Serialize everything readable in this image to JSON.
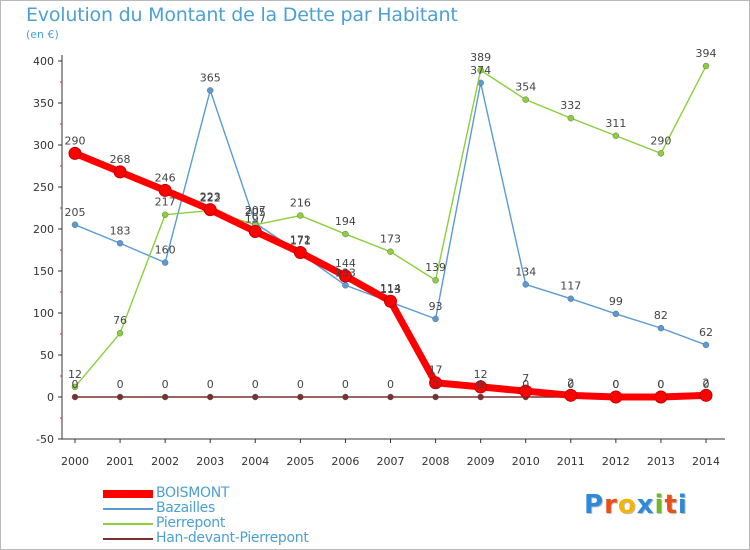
{
  "chart_data": {
    "type": "line",
    "title": "Evolution du Montant de la Dette par Habitant",
    "unit": "(en €)",
    "x": [
      "2000",
      "2001",
      "2002",
      "2003",
      "2004",
      "2005",
      "2006",
      "2007",
      "2008",
      "2009",
      "2010",
      "2011",
      "2012",
      "2013",
      "2014"
    ],
    "ylim": [
      -50,
      400
    ],
    "yticks": [
      "-50",
      "0",
      "50",
      "100",
      "150",
      "200",
      "250",
      "300",
      "350",
      "400"
    ],
    "ytick_values": [
      -50,
      0,
      50,
      100,
      150,
      200,
      250,
      300,
      350,
      400
    ],
    "grid": false,
    "legend_position": "bottom-left",
    "series": [
      {
        "name": "BOISMONT",
        "color": "#ff0000",
        "values": [
          290,
          268,
          246,
          223,
          197,
          172,
          144,
          114,
          17,
          12,
          7,
          2,
          0,
          0,
          2
        ],
        "labels": [
          "290",
          "268",
          "246",
          "223",
          "197",
          "172",
          "144",
          "114",
          "17",
          "12",
          "7",
          "2",
          "0",
          "0",
          "2"
        ]
      },
      {
        "name": "Bazailles",
        "color": "#5b9bd5",
        "values": [
          205,
          183,
          160,
          365,
          207,
          171,
          133,
          113,
          93,
          374,
          134,
          117,
          99,
          82,
          62
        ],
        "labels": [
          "205",
          "183",
          "160",
          "365",
          "207",
          "171",
          "133",
          "113",
          "93",
          "374",
          "134",
          "117",
          "99",
          "82",
          "62"
        ]
      },
      {
        "name": "Pierrepont",
        "color": "#8ccf3c",
        "values": [
          12,
          76,
          217,
          222,
          205,
          216,
          194,
          173,
          139,
          389,
          354,
          332,
          311,
          290,
          394
        ],
        "labels": [
          "12",
          "76",
          "217",
          "222",
          "205",
          "216",
          "194",
          "173",
          "139",
          "389",
          "354",
          "332",
          "311",
          "290",
          "394"
        ]
      },
      {
        "name": "Han-devant-Pierrepont",
        "color": "#7a3030",
        "values": [
          0,
          0,
          0,
          0,
          0,
          0,
          0,
          0,
          0,
          0,
          0,
          0,
          0,
          0,
          0
        ],
        "labels": [
          "0",
          "0",
          "0",
          "0",
          "0",
          "0",
          "0",
          "0",
          "0",
          "0",
          "0",
          "0",
          "0",
          "0",
          "0"
        ]
      }
    ]
  },
  "logo": {
    "text": "Proxiti",
    "letters": [
      "P",
      "r",
      "o",
      "x",
      "i",
      "t",
      "i"
    ],
    "colors": [
      "#2e8ad8",
      "#e94e1b",
      "#f6b300",
      "#2e8ad8",
      "#72b72a",
      "#e94e1b",
      "#2e8ad8"
    ]
  }
}
